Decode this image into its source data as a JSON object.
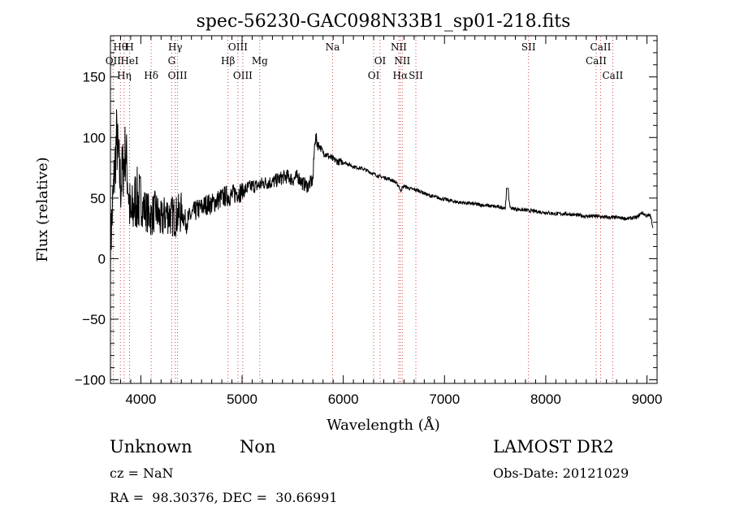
{
  "chart_data": {
    "type": "line",
    "title": "spec-56230-GAC098N33B1_sp01-218.fits",
    "xlabel": "Wavelength (Å)",
    "ylabel": "Flux (relative)",
    "xlim": [
      3700,
      9100
    ],
    "ylim": [
      -103,
      184
    ],
    "x_ticks": [
      4000,
      5000,
      6000,
      7000,
      8000,
      9000
    ],
    "x_tick_labels": [
      "4000",
      "5000",
      "6000",
      "7000",
      "8000",
      "9000"
    ],
    "y_ticks": [
      -100,
      -50,
      0,
      50,
      100,
      150
    ],
    "y_tick_labels": [
      "−100",
      "−50",
      "0",
      "50",
      "100",
      "150"
    ],
    "grid": false,
    "series": [
      {
        "values_description_free": true,
        "x": [
          3700,
          3760,
          3800,
          3850,
          3900,
          3950,
          4000,
          4050,
          4100,
          4150,
          4200,
          4250,
          4300,
          4350,
          4400,
          4450,
          4500,
          4550,
          4600,
          4650,
          4700,
          4750,
          4800,
          4850,
          4900,
          4950,
          5000,
          5050,
          5100,
          5150,
          5200,
          5250,
          5300,
          5350,
          5400,
          5450,
          5500,
          5550,
          5600,
          5650,
          5700,
          5720,
          5750,
          5800,
          5850,
          5900,
          5950,
          6000,
          6050,
          6100,
          6150,
          6200,
          6250,
          6300,
          6350,
          6400,
          6450,
          6500,
          6550,
          6563,
          6600,
          6650,
          6700,
          6750,
          6800,
          6850,
          6900,
          6950,
          7000,
          7100,
          7200,
          7300,
          7400,
          7500,
          7600,
          7620,
          7650,
          7700,
          7800,
          7900,
          8000,
          8100,
          8200,
          8300,
          8400,
          8500,
          8600,
          8700,
          8800,
          8900,
          8950,
          9000,
          9030,
          9050,
          9060
        ],
        "y": [
          10,
          100,
          60,
          90,
          30,
          50,
          45,
          40,
          35,
          40,
          30,
          38,
          35,
          35,
          38,
          30,
          36,
          40,
          42,
          45,
          45,
          48,
          50,
          52,
          52,
          55,
          55,
          58,
          60,
          60,
          62,
          63,
          63,
          65,
          67,
          68,
          65,
          68,
          62,
          60,
          65,
          100,
          95,
          88,
          85,
          82,
          80,
          80,
          78,
          76,
          75,
          74,
          72,
          70,
          68,
          67,
          66,
          64,
          60,
          56,
          60,
          58,
          57,
          56,
          54,
          52,
          51,
          50,
          49,
          47,
          46,
          45,
          44,
          43,
          42,
          58,
          42,
          41,
          40,
          39,
          38,
          37,
          37,
          36,
          35,
          35,
          34,
          34,
          33,
          34,
          38,
          35,
          36,
          30,
          25
        ]
      }
    ],
    "lines": [
      {
        "name": "Hθ",
        "x": 3798,
        "row": 0
      },
      {
        "name": "OII",
        "x": 3727,
        "row": 1
      },
      {
        "name": "Hη",
        "x": 3835,
        "row": 2
      },
      {
        "name": "H",
        "x": 3889,
        "row": 0
      },
      {
        "name": "HeI",
        "x": 3889,
        "row": 1
      },
      {
        "name": "Hδ",
        "x": 4102,
        "row": 2
      },
      {
        "name": "Hγ",
        "x": 4340,
        "row": 0
      },
      {
        "name": "G",
        "x": 4305,
        "row": 1
      },
      {
        "name": "OIII",
        "x": 4363,
        "row": 2
      },
      {
        "name": "OIII",
        "x": 4959,
        "row": 0
      },
      {
        "name": "Hβ",
        "x": 4861,
        "row": 1
      },
      {
        "name": "OIII",
        "x": 5007,
        "row": 2
      },
      {
        "name": "Mg",
        "x": 5175,
        "row": 1
      },
      {
        "name": "Na",
        "x": 5894,
        "row": 0
      },
      {
        "name": "OI",
        "x": 6364,
        "row": 1
      },
      {
        "name": "OI",
        "x": 6300,
        "row": 2
      },
      {
        "name": "NII",
        "x": 6548,
        "row": 0
      },
      {
        "name": "NII",
        "x": 6583,
        "row": 1
      },
      {
        "name": "Hα",
        "x": 6563,
        "row": 2
      },
      {
        "name": "SII",
        "x": 6717,
        "row": 2
      },
      {
        "name": "SII",
        "x": 7830,
        "row": 0
      },
      {
        "name": "CaII",
        "x": 8542,
        "row": 0
      },
      {
        "name": "CaII",
        "x": 8498,
        "row": 1
      },
      {
        "name": "CaII",
        "x": 8662,
        "row": 2
      }
    ]
  },
  "info": {
    "class": "Unknown",
    "subclass": "Non",
    "cz": "cz = NaN",
    "coords": "RA =  98.30376, DEC =  30.66991",
    "survey": "LAMOST DR2",
    "obs_date": "Obs-Date: 20121029"
  },
  "colors": {
    "axis": "#000000",
    "spectrum": "#000000",
    "line_marker": "#d04040"
  }
}
